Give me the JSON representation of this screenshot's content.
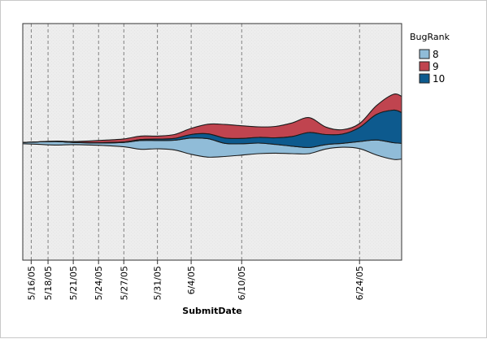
{
  "chart_data": {
    "type": "area",
    "subtype": "streamgraph",
    "xlabel": "SubmitDate",
    "ylabel": "",
    "title": "",
    "grid": "vertical-dashed",
    "legend_position": "right",
    "legend_title": "BugRank",
    "x_range": [
      "2005-05-15",
      "2005-06-29"
    ],
    "ticks": [
      "5/16/05",
      "5/18/05",
      "5/21/05",
      "5/24/05",
      "5/27/05",
      "5/31/05",
      "6/4/05",
      "6/10/05",
      "6/24/05"
    ],
    "tick_dates": [
      "2005-05-16",
      "2005-05-18",
      "2005-05-21",
      "2005-05-24",
      "2005-05-27",
      "2005-05-31",
      "2005-06-04",
      "2005-06-10",
      "2005-06-24"
    ],
    "x": [
      "2005-05-15",
      "2005-05-17",
      "2005-05-19",
      "2005-05-21",
      "2005-05-24",
      "2005-05-27",
      "2005-05-29",
      "2005-05-31",
      "2005-06-02",
      "2005-06-04",
      "2005-06-06",
      "2005-06-08",
      "2005-06-10",
      "2005-06-12",
      "2005-06-14",
      "2005-06-16",
      "2005-06-18",
      "2005-06-20",
      "2005-06-22",
      "2005-06-24",
      "2005-06-26",
      "2005-06-28",
      "2005-06-29"
    ],
    "series": [
      {
        "name": "8",
        "color": "#90bcd8",
        "values": [
          0.3,
          0.6,
          0.8,
          0.5,
          0.5,
          1.0,
          2.0,
          1.9,
          2.2,
          3.7,
          4.2,
          3.0,
          2.6,
          2.4,
          2.0,
          1.7,
          1.4,
          1.0,
          0.9,
          1.6,
          3.4,
          3.8,
          3.6
        ]
      },
      {
        "name": "9",
        "color": "#c0444f",
        "values": [
          0.0,
          0.0,
          0.1,
          0.2,
          0.5,
          0.7,
          0.8,
          0.7,
          0.9,
          1.4,
          2.2,
          3.1,
          2.9,
          2.4,
          2.6,
          3.1,
          3.4,
          1.7,
          1.0,
          0.9,
          2.0,
          3.6,
          3.7
        ]
      },
      {
        "name": "10",
        "color": "#0d5a8e",
        "values": [
          0.0,
          0.0,
          0.0,
          0.0,
          0.1,
          0.1,
          0.2,
          0.3,
          0.4,
          0.8,
          1.1,
          1.2,
          1.2,
          1.3,
          1.5,
          2.2,
          3.4,
          2.3,
          2.1,
          3.2,
          5.8,
          7.4,
          7.0
        ]
      }
    ]
  }
}
